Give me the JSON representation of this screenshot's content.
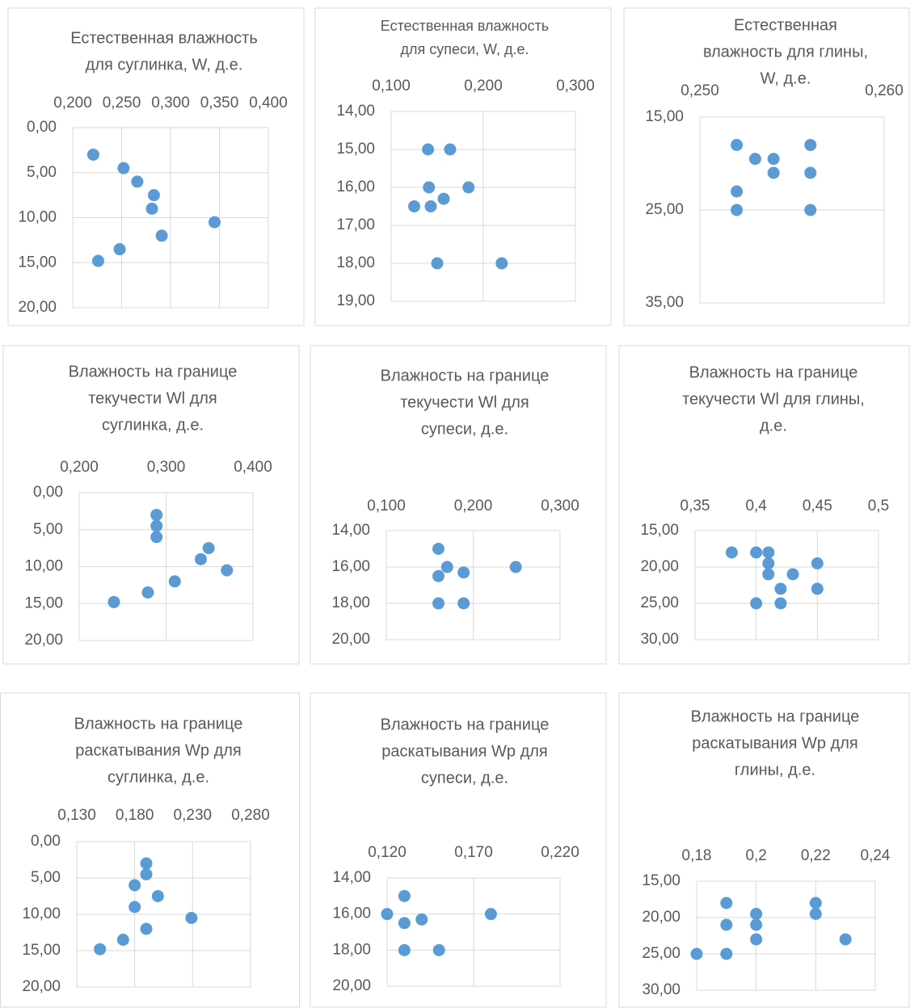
{
  "chart_data": [
    {
      "type": "scatter",
      "title": [
        "Естественная влажность",
        "для суглинка, W, д.е."
      ],
      "color": "#5b9bd5",
      "x_axis_position": "top",
      "y_inverted": true,
      "grid": true,
      "x": [
        0.221,
        0.252,
        0.266,
        0.283,
        0.281,
        0.345,
        0.291,
        0.248,
        0.226
      ],
      "y": [
        3,
        4.5,
        6,
        7.5,
        9,
        10.5,
        12,
        13.5,
        14.8
      ],
      "xlim": [
        0.2,
        0.4
      ],
      "xticks": [
        {
          "value": 0.2,
          "label": "0,200"
        },
        {
          "value": 0.25,
          "label": "0,250"
        },
        {
          "value": 0.3,
          "label": "0,300"
        },
        {
          "value": 0.35,
          "label": "0,350"
        },
        {
          "value": 0.4,
          "label": "0,400"
        }
      ],
      "ylim": [
        0,
        20
      ],
      "yticks": [
        {
          "value": 0,
          "label": "0,00"
        },
        {
          "value": 5,
          "label": "5,00"
        },
        {
          "value": 10,
          "label": "10,00"
        },
        {
          "value": 15,
          "label": "15,00"
        },
        {
          "value": 20,
          "label": "20,00"
        }
      ]
    },
    {
      "type": "scatter",
      "title": [
        "Естественная влажность",
        "для супеси, W, д.е."
      ],
      "color": "#5b9bd5",
      "x_axis_position": "top",
      "y_inverted": true,
      "grid": true,
      "x": [
        0.14,
        0.164,
        0.141,
        0.184,
        0.157,
        0.125,
        0.143,
        0.15,
        0.22
      ],
      "y": [
        15,
        15,
        16,
        16,
        16.3,
        16.5,
        16.5,
        18,
        18
      ],
      "xlim": [
        0.1,
        0.3
      ],
      "xticks": [
        {
          "value": 0.1,
          "label": "0,100"
        },
        {
          "value": 0.2,
          "label": "0,200"
        },
        {
          "value": 0.3,
          "label": "0,300"
        }
      ],
      "ylim": [
        14,
        19
      ],
      "yticks": [
        {
          "value": 14,
          "label": "14,00"
        },
        {
          "value": 15,
          "label": "15,00"
        },
        {
          "value": 16,
          "label": "16,00"
        },
        {
          "value": 17,
          "label": "17,00"
        },
        {
          "value": 18,
          "label": "18,00"
        },
        {
          "value": 19,
          "label": "19,00"
        }
      ]
    },
    {
      "type": "scatter",
      "title": [
        "Естественная",
        "влажность для глины,",
        "W, д.е."
      ],
      "color": "#5b9bd5",
      "x_axis_position": "top",
      "y_inverted": true,
      "grid": true,
      "x": [
        0.252,
        0.253,
        0.254,
        0.254,
        0.252,
        0.252,
        0.256,
        0.256,
        0.256
      ],
      "y": [
        18,
        19.5,
        19.5,
        21,
        23,
        25,
        18,
        21,
        25
      ],
      "xlim": [
        0.25,
        0.26
      ],
      "xticks": [
        {
          "value": 0.25,
          "label": "0,250"
        },
        {
          "value": 0.26,
          "label": "0,260"
        }
      ],
      "ylim": [
        15,
        35
      ],
      "yticks": [
        {
          "value": 15,
          "label": "15,00"
        },
        {
          "value": 25,
          "label": "25,00"
        },
        {
          "value": 35,
          "label": "35,00"
        }
      ]
    },
    {
      "type": "scatter",
      "title": [
        "Влажность на границе",
        "текучести Wl для",
        "суглинка, д.е."
      ],
      "color": "#5b9bd5",
      "x_axis_position": "top",
      "y_inverted": true,
      "grid": true,
      "x": [
        0.289,
        0.289,
        0.289,
        0.349,
        0.34,
        0.37,
        0.31,
        0.279,
        0.24
      ],
      "y": [
        3,
        4.5,
        6,
        7.5,
        9,
        10.5,
        12,
        13.5,
        14.8
      ],
      "xlim": [
        0.2,
        0.4
      ],
      "xticks": [
        {
          "value": 0.2,
          "label": "0,200"
        },
        {
          "value": 0.3,
          "label": "0,300"
        },
        {
          "value": 0.4,
          "label": "0,400"
        }
      ],
      "ylim": [
        0,
        20
      ],
      "yticks": [
        {
          "value": 0,
          "label": "0,00"
        },
        {
          "value": 5,
          "label": "5,00"
        },
        {
          "value": 10,
          "label": "10,00"
        },
        {
          "value": 15,
          "label": "15,00"
        },
        {
          "value": 20,
          "label": "20,00"
        }
      ]
    },
    {
      "type": "scatter",
      "title": [
        "Влажность на границе",
        "текучести Wl для",
        "супеси, д.е."
      ],
      "color": "#5b9bd5",
      "x_axis_position": "top",
      "y_inverted": true,
      "grid": true,
      "x": [
        0.16,
        0.17,
        0.16,
        0.189,
        0.249,
        0.16,
        0.189
      ],
      "y": [
        15,
        16,
        16.5,
        16.3,
        16,
        18,
        18
      ],
      "xlim": [
        0.1,
        0.3
      ],
      "xticks": [
        {
          "value": 0.1,
          "label": "0,100"
        },
        {
          "value": 0.2,
          "label": "0,200"
        },
        {
          "value": 0.3,
          "label": "0,300"
        }
      ],
      "ylim": [
        14,
        20
      ],
      "yticks": [
        {
          "value": 14,
          "label": "14,00"
        },
        {
          "value": 16,
          "label": "16,00"
        },
        {
          "value": 18,
          "label": "18,00"
        },
        {
          "value": 20,
          "label": "20,00"
        }
      ]
    },
    {
      "type": "scatter",
      "title": [
        "Влажность на границе",
        "текучести Wl для глины,",
        "д.е."
      ],
      "color": "#5b9bd5",
      "x_axis_position": "top",
      "y_inverted": true,
      "grid": true,
      "x": [
        0.38,
        0.4,
        0.41,
        0.41,
        0.41,
        0.43,
        0.45,
        0.42,
        0.45,
        0.4,
        0.42
      ],
      "y": [
        18,
        18,
        18,
        19.5,
        21,
        21,
        19.5,
        23,
        23,
        25,
        25
      ],
      "xlim": [
        0.35,
        0.5
      ],
      "xticks": [
        {
          "value": 0.35,
          "label": "0,35"
        },
        {
          "value": 0.4,
          "label": "0,4"
        },
        {
          "value": 0.45,
          "label": "0,45"
        },
        {
          "value": 0.5,
          "label": "0,5"
        }
      ],
      "ylim": [
        15,
        30
      ],
      "yticks": [
        {
          "value": 15,
          "label": "15,00"
        },
        {
          "value": 20,
          "label": "20,00"
        },
        {
          "value": 25,
          "label": "25,00"
        },
        {
          "value": 30,
          "label": "30,00"
        }
      ]
    },
    {
      "type": "scatter",
      "title": [
        "Влажность на границе",
        "раскатывания Wp для",
        "суглинка,  д.е."
      ],
      "color": "#5b9bd5",
      "x_axis_position": "top",
      "y_inverted": true,
      "grid": true,
      "x": [
        0.19,
        0.19,
        0.18,
        0.2,
        0.18,
        0.229,
        0.19,
        0.17,
        0.15
      ],
      "y": [
        3,
        4.5,
        6,
        7.5,
        9,
        10.5,
        12,
        13.5,
        14.8
      ],
      "xlim": [
        0.13,
        0.28
      ],
      "xticks": [
        {
          "value": 0.13,
          "label": "0,130"
        },
        {
          "value": 0.18,
          "label": "0,180"
        },
        {
          "value": 0.23,
          "label": "0,230"
        },
        {
          "value": 0.28,
          "label": "0,280"
        }
      ],
      "ylim": [
        0,
        20
      ],
      "yticks": [
        {
          "value": 0,
          "label": "0,00"
        },
        {
          "value": 5,
          "label": "5,00"
        },
        {
          "value": 10,
          "label": "10,00"
        },
        {
          "value": 15,
          "label": "15,00"
        },
        {
          "value": 20,
          "label": "20,00"
        }
      ]
    },
    {
      "type": "scatter",
      "title": [
        "Влажность на границе",
        "раскатывания Wp для",
        "супеси, д.е."
      ],
      "color": "#5b9bd5",
      "x_axis_position": "top",
      "y_inverted": true,
      "grid": true,
      "x": [
        0.12,
        0.13,
        0.13,
        0.14,
        0.18,
        0.13,
        0.15
      ],
      "y": [
        16,
        15,
        16.5,
        16.3,
        16,
        18,
        18
      ],
      "xlim": [
        0.12,
        0.22
      ],
      "xticks": [
        {
          "value": 0.12,
          "label": "0,120"
        },
        {
          "value": 0.17,
          "label": "0,170"
        },
        {
          "value": 0.22,
          "label": "0,220"
        }
      ],
      "ylim": [
        14,
        20
      ],
      "yticks": [
        {
          "value": 14,
          "label": "14,00"
        },
        {
          "value": 16,
          "label": "16,00"
        },
        {
          "value": 18,
          "label": "18,00"
        },
        {
          "value": 20,
          "label": "20,00"
        }
      ]
    },
    {
      "type": "scatter",
      "title": [
        "Влажность на границе",
        "раскатывания Wp для",
        "глины, д.е."
      ],
      "color": "#5b9bd5",
      "x_axis_position": "top",
      "y_inverted": true,
      "grid": true,
      "x": [
        0.19,
        0.19,
        0.2,
        0.2,
        0.2,
        0.22,
        0.22,
        0.23,
        0.18,
        0.19
      ],
      "y": [
        18,
        21,
        19.5,
        21,
        23,
        18,
        19.5,
        23,
        25,
        25
      ],
      "xlim": [
        0.18,
        0.24
      ],
      "xticks": [
        {
          "value": 0.18,
          "label": "0,18"
        },
        {
          "value": 0.2,
          "label": "0,2"
        },
        {
          "value": 0.22,
          "label": "0,22"
        },
        {
          "value": 0.24,
          "label": "0,24"
        }
      ],
      "ylim": [
        15,
        30
      ],
      "yticks": [
        {
          "value": 15,
          "label": "15,00"
        },
        {
          "value": 20,
          "label": "20,00"
        },
        {
          "value": 25,
          "label": "25,00"
        },
        {
          "value": 30,
          "label": "30,00"
        }
      ]
    }
  ]
}
